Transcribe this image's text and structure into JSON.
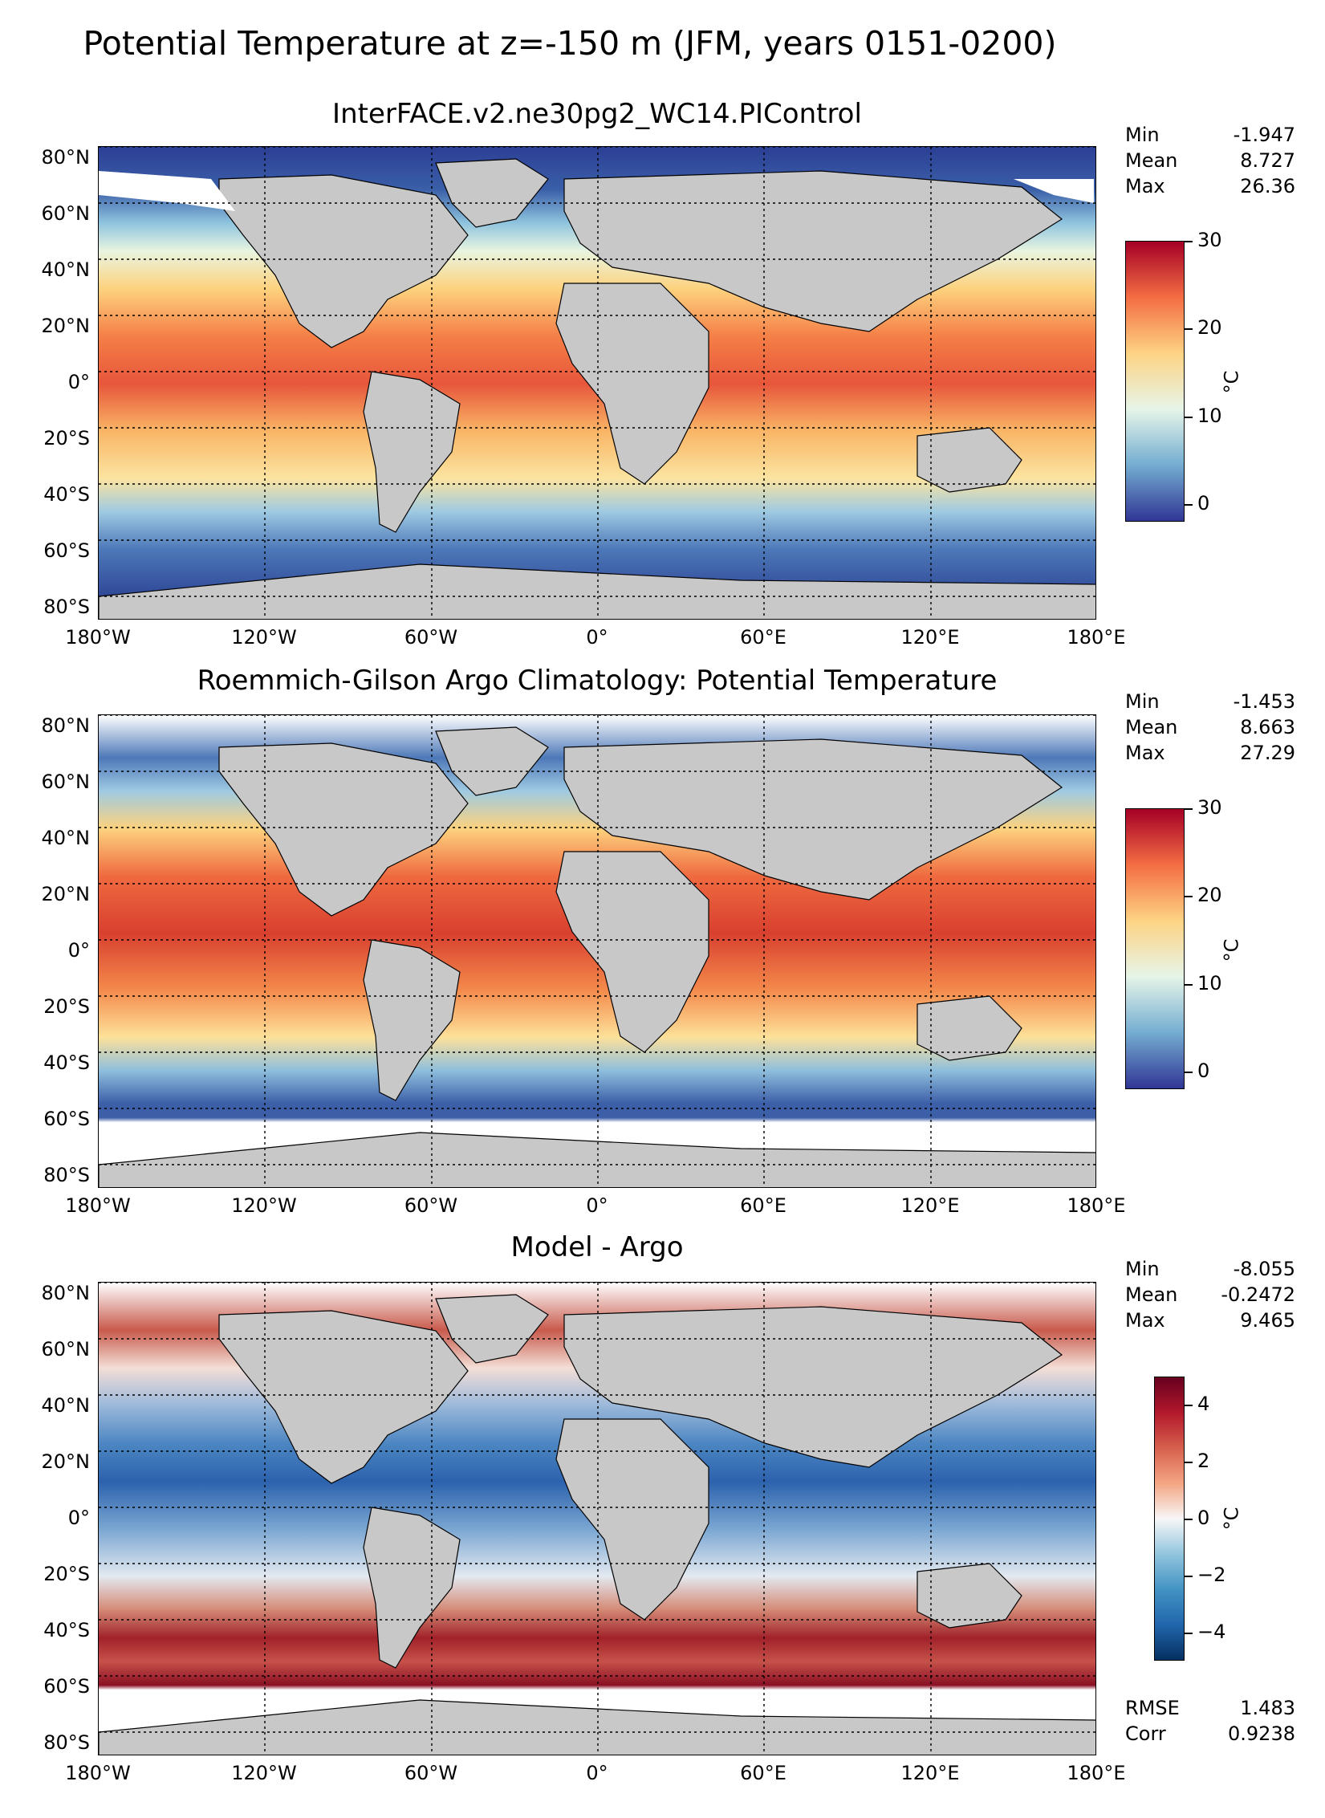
{
  "figure": {
    "suptitle": "Potential Temperature at z=-150 m (JFM, years 0151-0200)"
  },
  "axes": {
    "lon_ticks": [
      "180°W",
      "120°W",
      "60°W",
      "0°",
      "60°E",
      "120°E",
      "180°E"
    ],
    "lat_ticks": [
      "80°N",
      "60°N",
      "40°N",
      "20°N",
      "0°",
      "20°S",
      "40°S",
      "60°S",
      "80°S"
    ]
  },
  "panels": [
    {
      "title": "InterFACE.v2.ne30pg2_WC14.PIControl",
      "stats": [
        {
          "label": "Min",
          "value": "-1.947"
        },
        {
          "label": "Mean",
          "value": "8.727"
        },
        {
          "label": "Max",
          "value": "26.36"
        }
      ],
      "colorbar": {
        "unit": "°C",
        "ticks": [
          "30",
          "20",
          "10",
          "0"
        ],
        "range": [
          -2,
          30
        ],
        "cmap": "RdYlBu_r"
      }
    },
    {
      "title": "Roemmich-Gilson Argo Climatology: Potential Temperature",
      "stats": [
        {
          "label": "Min",
          "value": "-1.453"
        },
        {
          "label": "Mean",
          "value": "8.663"
        },
        {
          "label": "Max",
          "value": "27.29"
        }
      ],
      "colorbar": {
        "unit": "°C",
        "ticks": [
          "30",
          "20",
          "10",
          "0"
        ],
        "range": [
          -2,
          30
        ],
        "cmap": "RdYlBu_r"
      }
    },
    {
      "title": "Model - Argo",
      "stats": [
        {
          "label": "Min",
          "value": "-8.055"
        },
        {
          "label": "Mean",
          "value": "-0.2472"
        },
        {
          "label": "Max",
          "value": "9.465"
        }
      ],
      "colorbar": {
        "unit": "°C",
        "ticks": [
          "4",
          "2",
          "0",
          "−2",
          "−4"
        ],
        "range": [
          -5,
          5
        ],
        "cmap": "RdBu_r"
      },
      "extra_stats": [
        {
          "label": "RMSE",
          "value": "1.483"
        },
        {
          "label": "Corr",
          "value": "0.9238"
        }
      ]
    }
  ],
  "colors": {
    "land": "#c8c8c8",
    "no_data": "#ffffff",
    "warm": "#d7301f",
    "cold": "#2c4f9e"
  }
}
